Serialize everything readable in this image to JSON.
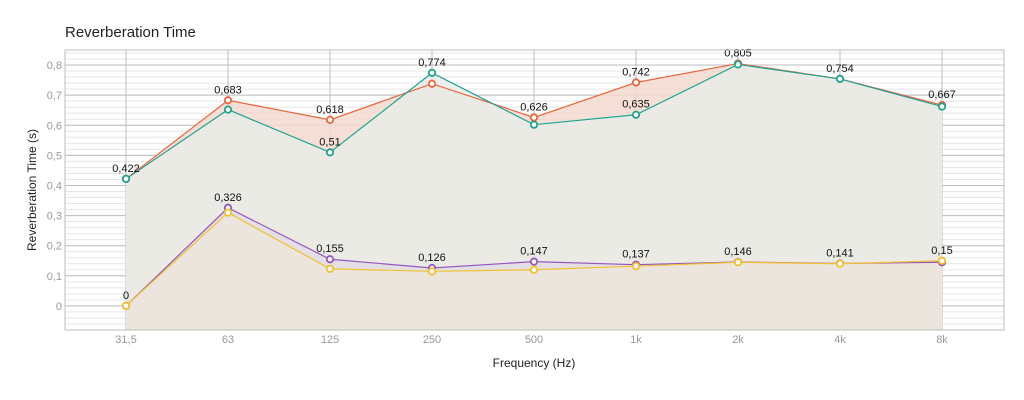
{
  "chart_data": {
    "type": "line",
    "title": "Reverberation Time",
    "xlabel": "Frequency (Hz)",
    "ylabel": "Reverberation Time (s)",
    "categories": [
      "31,5",
      "63",
      "125",
      "250",
      "500",
      "1k",
      "2k",
      "4k",
      "8k"
    ],
    "y_ticks": [
      0,
      0.1,
      0.2,
      0.3,
      0.4,
      0.5,
      0.6,
      0.7,
      0.8
    ],
    "y_tick_labels": [
      "0",
      "0,1",
      "0,2",
      "0,3",
      "0,4",
      "0,5",
      "0,6",
      "0,7",
      "0,8"
    ],
    "ylim": [
      -0.08,
      0.85
    ],
    "grid": true,
    "legend": "none",
    "series": [
      {
        "color": "#e8663d",
        "fill": "#f3d9cf",
        "values": [
          0.422,
          0.683,
          0.618,
          0.738,
          0.626,
          0.742,
          0.805,
          0.754,
          0.667
        ],
        "labels": [
          null,
          "0,683",
          "0,618",
          null,
          "0,626",
          "0,742",
          "0,805",
          "0,754",
          "0,667"
        ]
      },
      {
        "color": "#21a394",
        "fill": "#e9ece8",
        "values": [
          0.422,
          0.652,
          0.51,
          0.774,
          0.602,
          0.635,
          0.802,
          0.754,
          0.662
        ],
        "labels": [
          "0,422",
          null,
          "0,51",
          "0,774",
          null,
          "0,635",
          null,
          null,
          null
        ]
      },
      {
        "color": "#9457c0",
        "fill": "#e2dde4",
        "values": [
          0,
          0.326,
          0.155,
          0.126,
          0.147,
          0.137,
          0.146,
          0.141,
          0.145
        ],
        "labels": [
          "0",
          "0,326",
          "0,155",
          "0,126",
          "0,147",
          "0,137",
          "0,146",
          "0,141",
          null
        ]
      },
      {
        "color": "#f2c12e",
        "fill": "#ece6dc",
        "values": [
          0,
          0.31,
          0.123,
          0.115,
          0.12,
          0.132,
          0.145,
          0.14,
          0.15
        ],
        "labels": [
          null,
          null,
          null,
          null,
          null,
          null,
          null,
          null,
          "0,15"
        ]
      }
    ]
  }
}
